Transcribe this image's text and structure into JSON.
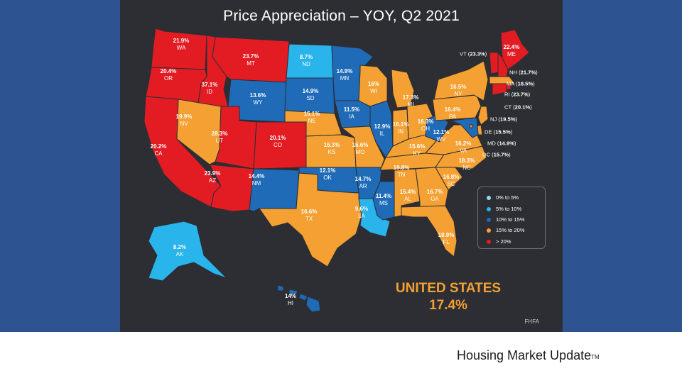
{
  "title": "Price Appreciation – YOY, Q2 2021",
  "colors": {
    "band": "#2e5391",
    "slide": "#2c2e33",
    "0-5": "#8fd9f5",
    "5-10": "#29b4eb",
    "10-15": "#1f6bb8",
    "15-20": "#f5a032",
    "20+": "#e31c24"
  },
  "states": [
    {
      "abbr": "WA",
      "value": "21.9%",
      "cat": "20+"
    },
    {
      "abbr": "OR",
      "value": "20.4%",
      "cat": "20+"
    },
    {
      "abbr": "CA",
      "value": "20.2%",
      "cat": "20+"
    },
    {
      "abbr": "ID",
      "value": "37.1%",
      "cat": "20+"
    },
    {
      "abbr": "NV",
      "value": "19.9%",
      "cat": "15-20"
    },
    {
      "abbr": "MT",
      "value": "23.7%",
      "cat": "20+"
    },
    {
      "abbr": "WY",
      "value": "13.6%",
      "cat": "10-15"
    },
    {
      "abbr": "UT",
      "value": "28.3%",
      "cat": "20+"
    },
    {
      "abbr": "CO",
      "value": "20.1%",
      "cat": "20+"
    },
    {
      "abbr": "AZ",
      "value": "23.9%",
      "cat": "20+"
    },
    {
      "abbr": "NM",
      "value": "14.4%",
      "cat": "10-15"
    },
    {
      "abbr": "ND",
      "value": "8.7%",
      "cat": "5-10"
    },
    {
      "abbr": "SD",
      "value": "14.9%",
      "cat": "10-15"
    },
    {
      "abbr": "NE",
      "value": "15.1%",
      "cat": "15-20"
    },
    {
      "abbr": "KS",
      "value": "16.3%",
      "cat": "15-20"
    },
    {
      "abbr": "OK",
      "value": "12.1%",
      "cat": "10-15"
    },
    {
      "abbr": "TX",
      "value": "16.6%",
      "cat": "15-20"
    },
    {
      "abbr": "MN",
      "value": "14.9%",
      "cat": "10-15"
    },
    {
      "abbr": "IA",
      "value": "11.5%",
      "cat": "10-15"
    },
    {
      "abbr": "MO",
      "value": "16.6%",
      "cat": "15-20"
    },
    {
      "abbr": "AR",
      "value": "14.7%",
      "cat": "10-15"
    },
    {
      "abbr": "LA",
      "value": "9.6%",
      "cat": "5-10"
    },
    {
      "abbr": "WI",
      "value": "16%",
      "cat": "15-20"
    },
    {
      "abbr": "IL",
      "value": "12.9%",
      "cat": "10-15"
    },
    {
      "abbr": "MS",
      "value": "11.4%",
      "cat": "10-15"
    },
    {
      "abbr": "MI",
      "value": "17.3%",
      "cat": "15-20"
    },
    {
      "abbr": "IN",
      "value": "16.1%",
      "cat": "15-20"
    },
    {
      "abbr": "KY",
      "value": "15.6%",
      "cat": "15-20"
    },
    {
      "abbr": "TN",
      "value": "19.8%",
      "cat": "15-20"
    },
    {
      "abbr": "AL",
      "value": "15.4%",
      "cat": "15-20"
    },
    {
      "abbr": "OH",
      "value": "16.3%",
      "cat": "15-20"
    },
    {
      "abbr": "GA",
      "value": "16.7%",
      "cat": "15-20"
    },
    {
      "abbr": "FL",
      "value": "18.9%",
      "cat": "15-20"
    },
    {
      "abbr": "SC",
      "value": "16.8%",
      "cat": "15-20"
    },
    {
      "abbr": "NC",
      "value": "18.3%",
      "cat": "15-20"
    },
    {
      "abbr": "VA",
      "value": "16.2%",
      "cat": "15-20"
    },
    {
      "abbr": "WV",
      "value": "12.1%",
      "cat": "10-15"
    },
    {
      "abbr": "PA",
      "value": "16.4%",
      "cat": "15-20"
    },
    {
      "abbr": "NY",
      "value": "16.5%",
      "cat": "15-20"
    },
    {
      "abbr": "ME",
      "value": "22.4%",
      "cat": "20+"
    },
    {
      "abbr": "AK",
      "value": "8.2%",
      "cat": "5-10"
    },
    {
      "abbr": "HI",
      "value": "14%",
      "cat": "10-15"
    }
  ],
  "callouts": [
    {
      "abbr": "VT",
      "value": "23.3%",
      "cat": "20+"
    },
    {
      "abbr": "NH",
      "value": "21.7%",
      "cat": "20+"
    },
    {
      "abbr": "MA",
      "value": "18.5%",
      "cat": "15-20"
    },
    {
      "abbr": "RI",
      "value": "23.7%",
      "cat": "20+"
    },
    {
      "abbr": "CT",
      "value": "20.1%",
      "cat": "20+"
    },
    {
      "abbr": "NJ",
      "value": "19.5%",
      "cat": "15-20"
    },
    {
      "abbr": "DE",
      "value": "15.5%",
      "cat": "15-20"
    },
    {
      "abbr": "MD",
      "value": "14.9%",
      "cat": "10-15"
    },
    {
      "abbr": "DC",
      "value": "15.7%",
      "cat": "15-20"
    }
  ],
  "legend": [
    {
      "label": "0% to 5%",
      "cat": "0-5"
    },
    {
      "label": "5% to 10%",
      "cat": "5-10"
    },
    {
      "label": "10% to 15%",
      "cat": "10-15"
    },
    {
      "label": "15% to 20%",
      "cat": "15-20"
    },
    {
      "label": "> 20%",
      "cat": "20+"
    }
  ],
  "national": {
    "label": "UNITED STATES",
    "value": "17.4%"
  },
  "source": "FHFA",
  "footer": {
    "text": "Housing Market Update",
    "mark": "TM"
  }
}
